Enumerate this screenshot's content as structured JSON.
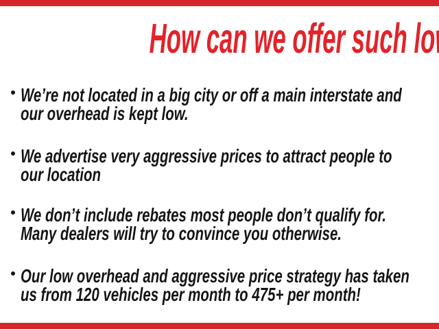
{
  "slide": {
    "background_color": "#ffffff",
    "bar_color": "#d6262b",
    "headline": {
      "text": "How can we offer such low prices?",
      "color": "#e2232a"
    },
    "bullets": {
      "marker": "•",
      "text_color": "#141414",
      "items": [
        {
          "text": "We’re not located in a big city or off a main interstate and\nour overhead is kept low."
        },
        {
          "text": "We advertise very aggressive prices to attract people to\nour location"
        },
        {
          "text": "We don’t include rebates most people don’t qualify for.\nMany dealers will try to convince you otherwise."
        },
        {
          "text": "Our low overhead and aggressive price strategy has taken\nus from 120 vehicles per month to 475+ per month!"
        }
      ]
    }
  }
}
